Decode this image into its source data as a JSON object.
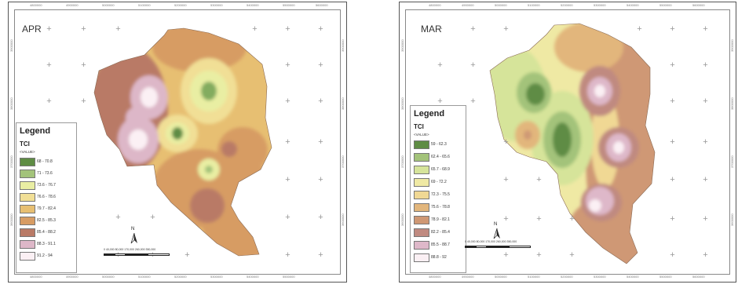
{
  "panels": {
    "apr": {
      "month": "APR",
      "legend": {
        "title": "Legend",
        "subtitle": "TCI",
        "value_header": "<VALUE>",
        "classes": [
          {
            "label": "68 - 70.8",
            "color": "#5e8c44"
          },
          {
            "label": "71 - 73.6",
            "color": "#a3c37a"
          },
          {
            "label": "73.6 - 76.7",
            "color": "#e9eea3"
          },
          {
            "label": "76.6 - 78.6",
            "color": "#f1df96"
          },
          {
            "label": "79.7 - 82.4",
            "color": "#e7bf72"
          },
          {
            "label": "82.5 - 85.3",
            "color": "#d79c64"
          },
          {
            "label": "85.4 - 88.2",
            "color": "#b97a66"
          },
          {
            "label": "88.3 - 91.1",
            "color": "#ddb7c8"
          },
          {
            "label": "91.2 - 94",
            "color": "#fbf0f4"
          }
        ]
      },
      "north_label": "N",
      "scale_text": "0  40,000 80,000   170,000   260,000   350,000"
    },
    "mar": {
      "month": "MAR",
      "legend": {
        "title": "Legend",
        "subtitle": "TCI",
        "value_header": "<VALUE>",
        "classes": [
          {
            "label": "59 - 62.3",
            "color": "#5e8c44"
          },
          {
            "label": "62.4 - 65.6",
            "color": "#a3c37a"
          },
          {
            "label": "65.7 - 68.9",
            "color": "#d6e49a"
          },
          {
            "label": "69 - 72.2",
            "color": "#efe9a4"
          },
          {
            "label": "72.3 - 75.5",
            "color": "#f0d894"
          },
          {
            "label": "75.6 - 78.8",
            "color": "#e2b67c"
          },
          {
            "label": "78.9 - 82.1",
            "color": "#cf9874"
          },
          {
            "label": "82.2 - 85.4",
            "color": "#c08a80"
          },
          {
            "label": "85.5 - 88.7",
            "color": "#deb8c9"
          },
          {
            "label": "88.8 - 92",
            "color": "#fbf0f4"
          }
        ]
      },
      "north_label": "N",
      "scale_text": "0  40,000 80,000   170,000   260,000   350,000"
    }
  },
  "axes": {
    "top_ticks": [
      "4800000",
      "4900000",
      "5000000",
      "5100000",
      "5200000",
      "5300000",
      "5400000",
      "5500000",
      "5600000",
      "5700000"
    ],
    "side_ticks": [
      "3900000",
      "3800000",
      "3700000",
      "3600000",
      "3500000",
      "3400000"
    ]
  },
  "grid_symbol": "+"
}
